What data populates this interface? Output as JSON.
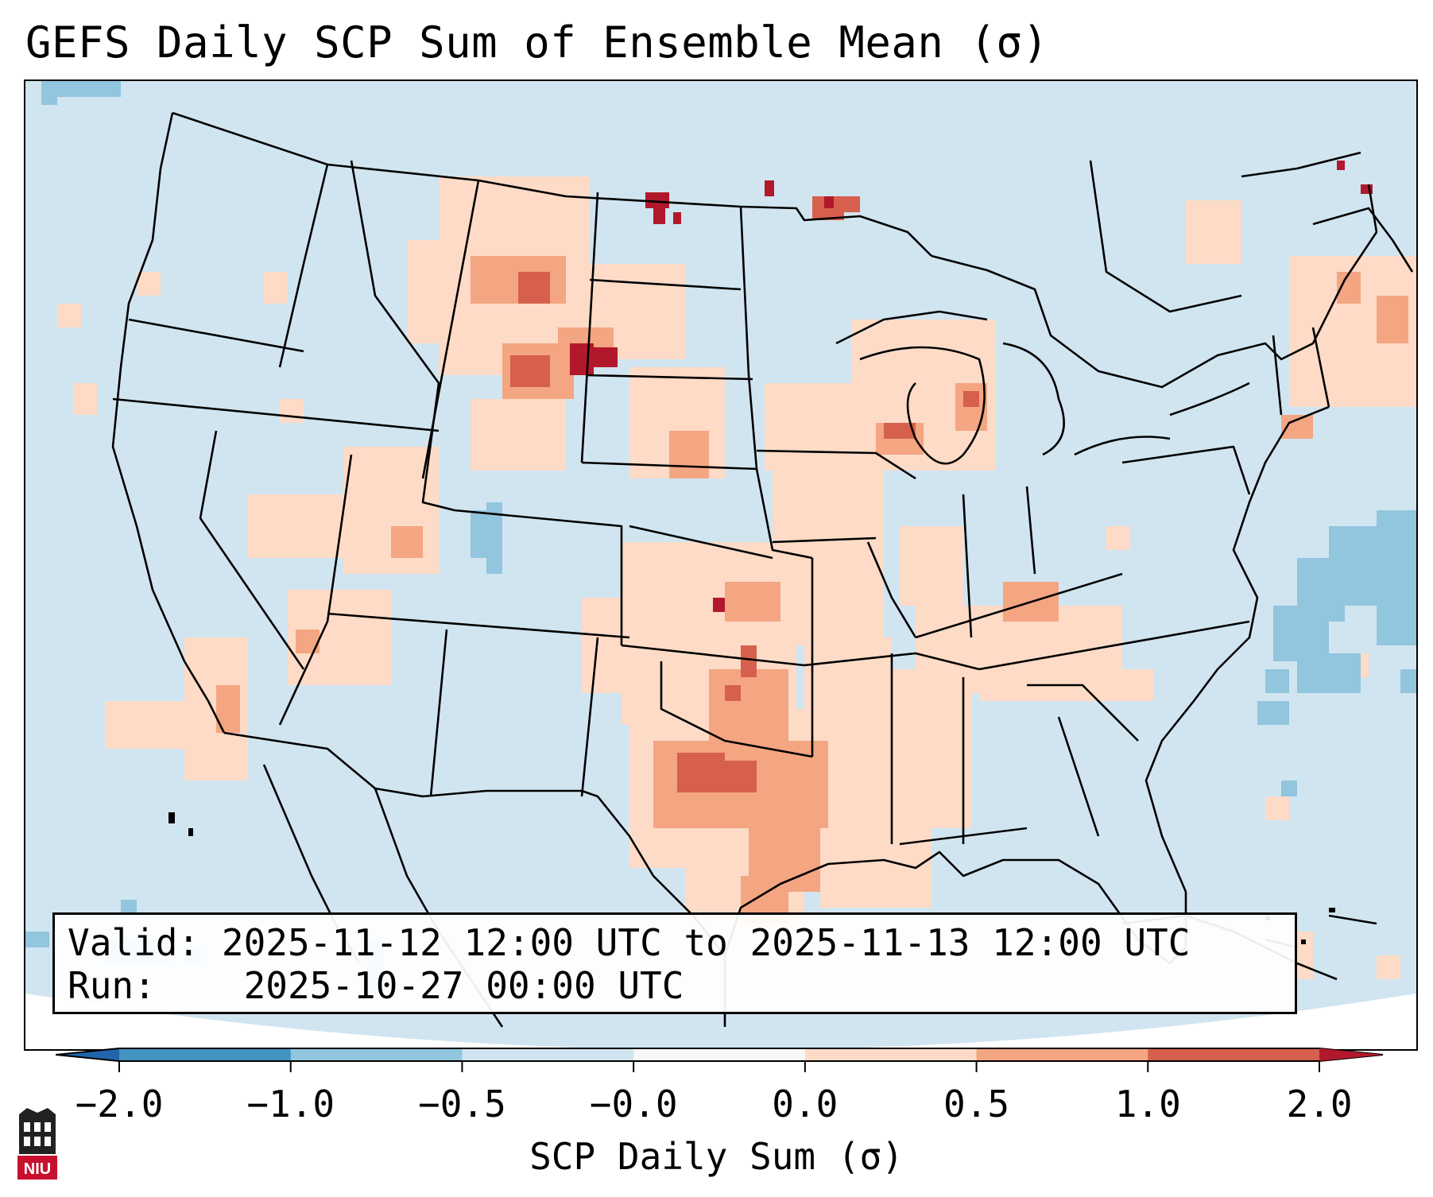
{
  "title": "GEFS Daily SCP Sum of Ensemble Mean (σ)",
  "info": {
    "valid_label": "Valid:",
    "valid_value": "2025-11-12 12:00 UTC to 2025-11-13 12:00 UTC",
    "run_label": "Run:",
    "run_value": "2025-10-27 00:00 UTC"
  },
  "colorbar": {
    "label": "SCP Daily Sum (σ)",
    "ticks": [
      "−2.0",
      "−1.0",
      "−0.5",
      "−0.0",
      "0.0",
      "0.5",
      "1.0",
      "2.0"
    ],
    "bins": [
      {
        "range": "-2.0 to -1.0",
        "color": "#4393c3"
      },
      {
        "range": "-1.0 to -0.5",
        "color": "#92c5de"
      },
      {
        "range": "-0.5 to -0.0",
        "color": "#d1e5f0"
      },
      {
        "range": "-0.0 to 0.0",
        "color": "#f7f7f7"
      },
      {
        "range": "0.0 to 0.5",
        "color": "#fddbc7"
      },
      {
        "range": "0.5 to 1.0",
        "color": "#f4a582"
      },
      {
        "range": "1.0 to 2.0",
        "color": "#d6604d"
      }
    ],
    "under_color": "#2166ac",
    "over_color": "#b2182b"
  },
  "logo": {
    "text": "NIU",
    "icon": "university-logo-icon"
  }
}
